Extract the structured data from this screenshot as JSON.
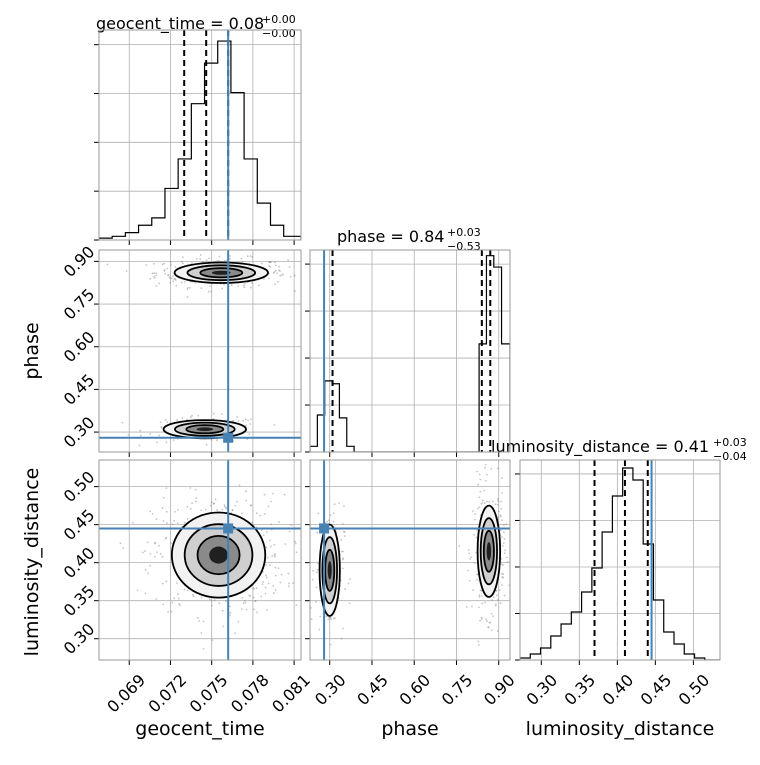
{
  "figure_type": "corner-plot",
  "colors": {
    "truth": "#4682b4",
    "quantile": "#000000",
    "grid": "#b0b0b0",
    "scatter": "#7f7f7f"
  },
  "chart_data": [
    {
      "type": "histogram",
      "panel": "geocent_time-1d",
      "title_param": "geocent_time",
      "title_value": "0.08",
      "title_plus": "+0.00",
      "title_minus": "−0.00",
      "xlim": [
        0.0668,
        0.0815
      ],
      "bins": [
        0.0668,
        0.06776,
        0.06872,
        0.06968,
        0.07064,
        0.0716,
        0.07256,
        0.07352,
        0.07448,
        0.07544,
        0.0764,
        0.07736,
        0.07832,
        0.07928,
        0.08024,
        0.0815
      ],
      "counts": [
        0.5,
        1,
        2,
        4,
        6,
        14,
        22,
        37,
        48,
        54,
        40,
        22,
        10,
        4,
        1
      ],
      "counts_max": 57,
      "quantiles": [
        0.073,
        0.0746,
        0.0762
      ],
      "truth": 0.0762,
      "grid": true,
      "y_ticks": 5
    },
    {
      "type": "scatter-density",
      "panel": "geocent_time-vs-phase",
      "xlim": [
        0.0668,
        0.0815
      ],
      "ylim": [
        0.23,
        0.94
      ],
      "yticks": [
        "0.30",
        "0.45",
        "0.60",
        "0.75",
        "0.90"
      ],
      "ytick_values": [
        0.3,
        0.45,
        0.6,
        0.75,
        0.9
      ],
      "ylabel": "phase",
      "modes": [
        {
          "center": [
            0.0757,
            0.86
          ],
          "spread": [
            0.0017,
            0.018
          ],
          "weight": 0.72
        },
        {
          "center": [
            0.0745,
            0.31
          ],
          "spread": [
            0.0015,
            0.016
          ],
          "weight": 0.28
        }
      ],
      "truth": [
        0.0762,
        0.28
      ],
      "grid": true
    },
    {
      "type": "histogram",
      "panel": "phase-1d",
      "title_param": "phase",
      "title_value": "0.84",
      "title_plus": "+0.03",
      "title_minus": "−0.53",
      "xlim": [
        0.23,
        0.94
      ],
      "bins": [
        0.23,
        0.2561,
        0.2822,
        0.3083,
        0.3344,
        0.3605,
        0.3866,
        0.4127,
        0.4388,
        0.4649,
        0.491,
        0.5171,
        0.5432,
        0.5693,
        0.5954,
        0.6215,
        0.6476,
        0.6737,
        0.6998,
        0.7259,
        0.752,
        0.7781,
        0.8042,
        0.8303,
        0.8564,
        0.8825,
        0.91,
        0.94
      ],
      "counts": [
        2,
        13,
        25,
        24,
        12,
        2,
        0,
        0,
        0,
        0,
        0,
        0,
        0,
        0,
        0,
        0,
        0,
        0,
        0,
        0,
        0,
        0,
        0,
        38,
        69,
        65,
        38
      ],
      "counts_max": 71,
      "quantiles": [
        0.31,
        0.84,
        0.87
      ],
      "truth": 0.28,
      "grid": true
    },
    {
      "type": "scatter-density",
      "panel": "geocent_time-vs-luminosity_distance",
      "xlim": [
        0.0668,
        0.0815
      ],
      "ylim": [
        0.272,
        0.535
      ],
      "xticks": [
        "0.069",
        "0.072",
        "0.075",
        "0.078",
        "0.081"
      ],
      "xtick_values": [
        0.069,
        0.072,
        0.075,
        0.078,
        0.081
      ],
      "yticks": [
        "0.30",
        "0.35",
        "0.40",
        "0.45",
        "0.50"
      ],
      "ytick_values": [
        0.3,
        0.35,
        0.4,
        0.45,
        0.5
      ],
      "xlabel": "geocent_time",
      "ylabel": "luminosity_distance",
      "modes": [
        {
          "center": [
            0.0755,
            0.41
          ],
          "spread": [
            0.0017,
            0.028
          ],
          "weight": 1.0
        }
      ],
      "truth": [
        0.0762,
        0.445
      ],
      "grid": true
    },
    {
      "type": "scatter-density",
      "panel": "phase-vs-luminosity_distance",
      "xlim": [
        0.23,
        0.94
      ],
      "ylim": [
        0.272,
        0.535
      ],
      "xticks": [
        "0.30",
        "0.45",
        "0.60",
        "0.75",
        "0.90"
      ],
      "xtick_values": [
        0.3,
        0.45,
        0.6,
        0.75,
        0.9
      ],
      "xlabel": "phase",
      "modes": [
        {
          "center": [
            0.865,
            0.415
          ],
          "spread": [
            0.02,
            0.03
          ],
          "weight": 0.7
        },
        {
          "center": [
            0.3,
            0.39
          ],
          "spread": [
            0.018,
            0.03
          ],
          "weight": 0.3
        }
      ],
      "truth": [
        0.28,
        0.445
      ],
      "grid": true
    },
    {
      "type": "histogram",
      "panel": "luminosity_distance-1d",
      "title_param": "luminosity_distance",
      "title_value": "0.41",
      "title_plus": "+0.03",
      "title_minus": "−0.04",
      "xlim": [
        0.272,
        0.535
      ],
      "bins": [
        0.272,
        0.2855,
        0.299,
        0.3125,
        0.326,
        0.3395,
        0.353,
        0.3665,
        0.38,
        0.3935,
        0.407,
        0.4205,
        0.434,
        0.4475,
        0.461,
        0.4745,
        0.488,
        0.5015,
        0.515,
        0.535
      ],
      "counts": [
        0.5,
        1.5,
        3,
        6,
        9,
        12,
        17,
        23,
        32,
        41,
        48,
        45,
        29,
        15,
        7,
        4,
        1.5,
        0.5,
        0
      ],
      "counts_max": 50,
      "quantiles": [
        0.37,
        0.41,
        0.44
      ],
      "truth": 0.445,
      "xticks": [
        "0.30",
        "0.35",
        "0.40",
        "0.45",
        "0.50"
      ],
      "xtick_values": [
        0.3,
        0.35,
        0.4,
        0.45,
        0.5
      ],
      "xlabel": "luminosity_distance",
      "grid": true,
      "y_ticks": 5
    }
  ]
}
